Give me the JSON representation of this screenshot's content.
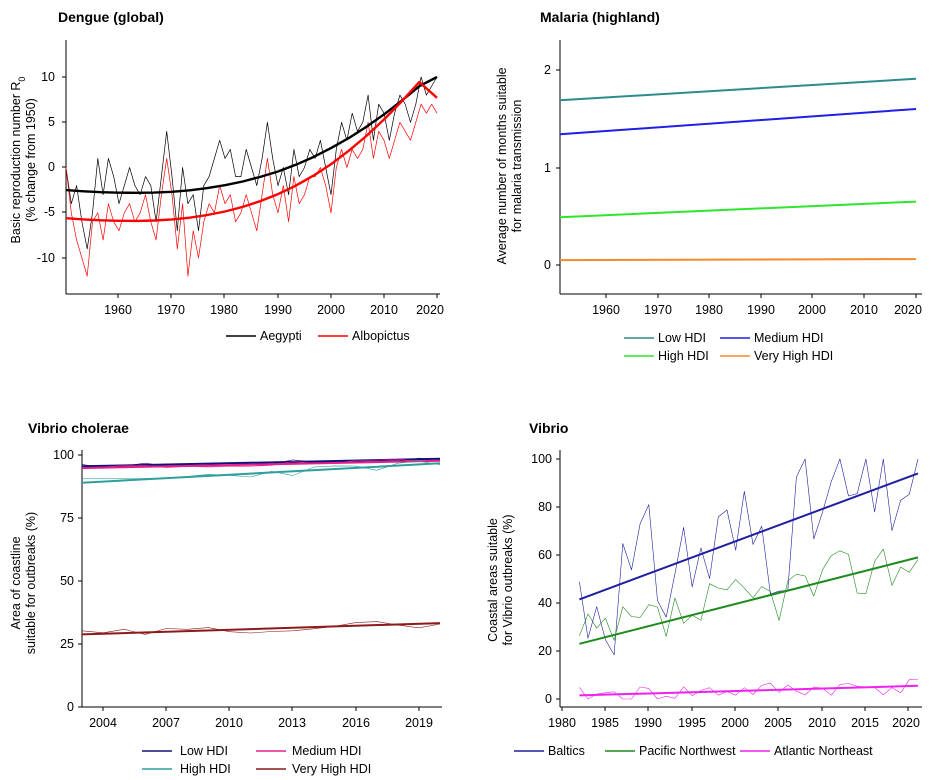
{
  "chart_data": [
    {
      "type": "line",
      "title": "Dengue (global)",
      "ylabel": "Basic reproduction number R",
      "ylabel_subscript": "0",
      "ylabel_line2": "(% change from 1950)",
      "xlabel": "",
      "xlim": [
        1951,
        2021
      ],
      "ylim": [
        -13,
        13
      ],
      "xticks": [
        "1960",
        "1970",
        "1980",
        "1990",
        "2000",
        "2010",
        "2020"
      ],
      "yticks": [
        "10",
        "5",
        "0",
        "-5",
        "-10"
      ],
      "grid": false,
      "legend": "bottom",
      "x": [
        1951,
        1952,
        1953,
        1954,
        1955,
        1956,
        1957,
        1958,
        1959,
        1960,
        1961,
        1962,
        1963,
        1964,
        1965,
        1966,
        1967,
        1968,
        1969,
        1970,
        1971,
        1972,
        1973,
        1974,
        1975,
        1976,
        1977,
        1978,
        1979,
        1980,
        1981,
        1982,
        1983,
        1984,
        1985,
        1986,
        1987,
        1988,
        1989,
        1990,
        1991,
        1992,
        1993,
        1994,
        1995,
        1996,
        1997,
        1998,
        1999,
        2000,
        2001,
        2002,
        2003,
        2004,
        2005,
        2006,
        2007,
        2008,
        2009,
        2010,
        2011,
        2012,
        2013,
        2014,
        2015,
        2016,
        2017,
        2018,
        2019,
        2020,
        2021
      ],
      "series": [
        {
          "name": "Aegypti",
          "color": "#000000",
          "values": [
            0,
            -4,
            -2,
            -6,
            -9,
            -5,
            1,
            -3,
            1,
            -1,
            -4,
            -2,
            0,
            -2,
            -3,
            -1,
            -2,
            -6,
            -1,
            4,
            -1,
            -7,
            0,
            -4,
            -3,
            -7,
            -2,
            -1,
            1,
            3,
            1,
            2,
            -1,
            -1,
            2,
            0,
            -2,
            1,
            5,
            1,
            -2,
            0,
            -3,
            2,
            -1,
            0,
            2,
            1,
            3,
            0,
            -3,
            2,
            5,
            3,
            6,
            4,
            5,
            8,
            3,
            7,
            6,
            3,
            6,
            8,
            7,
            5,
            7,
            10,
            8,
            9,
            10
          ]
        },
        {
          "name": "Albopictus",
          "color": "#ff0000",
          "values": [
            0,
            -5,
            -8,
            -10,
            -12,
            -6,
            -5,
            -8,
            -4,
            -6,
            -7,
            -5,
            -4,
            -6,
            -5,
            -3,
            -6,
            -8,
            -3,
            1,
            -3,
            -9,
            -4,
            -12,
            -7,
            -10,
            -6,
            -4,
            -5,
            -2,
            -4,
            -3,
            -6,
            -5,
            -3,
            -5,
            -7,
            -3,
            1,
            -3,
            -5,
            -2,
            -6,
            -1,
            -4,
            -3,
            -1,
            -1,
            0,
            -2,
            -5,
            0,
            2,
            0,
            2,
            1,
            2,
            5,
            1,
            4,
            3,
            1,
            3,
            5,
            4,
            3,
            5,
            7,
            6,
            7,
            6
          ]
        }
      ],
      "trends": [
        {
          "series": "Aegypti",
          "color": "#000000",
          "values": [
            -2.5,
            -2.63,
            -2.73,
            -2.79,
            -2.8,
            -2.77,
            -2.68,
            -2.52,
            -2.28,
            -1.96,
            -1.55,
            -1.04,
            -0.44,
            0.3,
            1.15,
            2.14,
            3.25,
            4.49,
            5.87,
            7.38,
            8.98,
            10.0
          ]
        },
        {
          "series": "Albopictus",
          "color": "#ff0000",
          "values": [
            -5.6,
            -5.73,
            -5.83,
            -5.89,
            -5.9,
            -5.86,
            -5.74,
            -5.55,
            -5.25,
            -4.86,
            -4.35,
            -3.71,
            -2.94,
            -2.01,
            -0.91,
            0.37,
            1.84,
            3.48,
            5.3,
            7.3,
            9.45,
            7.7
          ]
        }
      ]
    },
    {
      "type": "line",
      "title": "Malaria (highland)",
      "ylabel": "Average number of months suitable",
      "ylabel_line2": "for malaria transmission",
      "xlabel": "",
      "xlim": [
        1951,
        2021
      ],
      "ylim": [
        -0.3,
        2.3
      ],
      "xticks": [
        "1960",
        "1970",
        "1980",
        "1990",
        "2000",
        "2010",
        "2020"
      ],
      "yticks": [
        "2",
        "1",
        "0"
      ],
      "grid": false,
      "legend": "bottom",
      "series": [
        {
          "name": "Low HDI",
          "color": "#2e8b8b",
          "start": 1.69,
          "end": 1.91,
          "noise": 0.22,
          "seed": 3
        },
        {
          "name": "Medium HDI",
          "color": "#1f1fe6",
          "start": 1.34,
          "end": 1.6,
          "noise": 0.13,
          "seed": 7
        },
        {
          "name": "High HDI",
          "color": "#2ee62e",
          "start": 0.49,
          "end": 0.65,
          "noise": 0.06,
          "seed": 11
        },
        {
          "name": "Very High HDI",
          "color": "#f08c2e",
          "start": 0.05,
          "end": 0.06,
          "noise": 0.01,
          "seed": 13
        }
      ]
    },
    {
      "type": "line",
      "title": "Vibrio cholerae",
      "ylabel": "Area of coastline",
      "ylabel_line2": "suitable for outbreaks (%)",
      "xlabel": "",
      "xlim": [
        2003,
        2020
      ],
      "ylim": [
        0,
        100
      ],
      "xticks": [
        "2004",
        "2007",
        "2010",
        "2013",
        "2016",
        "2019"
      ],
      "yticks": [
        "100",
        "75",
        "50",
        "25",
        "0"
      ],
      "grid": false,
      "legend": "bottom",
      "series": [
        {
          "name": "Low HDI",
          "color": "#12127a",
          "start": 95.5,
          "end": 98.5,
          "noise": 0.9,
          "seed": 17
        },
        {
          "name": "Medium HDI",
          "color": "#e6208a",
          "start": 94.8,
          "end": 97.7,
          "noise": 1.0,
          "seed": 19
        },
        {
          "name": "High HDI",
          "color": "#2e9e9e",
          "start": 89.0,
          "end": 96.7,
          "noise": 1.8,
          "seed": 23
        },
        {
          "name": "Very High HDI",
          "color": "#8b1a1a",
          "start": 28.8,
          "end": 33.3,
          "noise": 1.6,
          "seed": 29
        }
      ]
    },
    {
      "type": "line",
      "title": "Vibrio",
      "ylabel": "Coastal areas suitable",
      "ylabel_line2": "for Vibrio outbreaks (%)",
      "xlabel": "",
      "xlim": [
        1980,
        2021
      ],
      "ylim": [
        -5,
        100
      ],
      "xticks": [
        "1980",
        "1985",
        "1990",
        "1995",
        "2000",
        "2005",
        "2010",
        "2015",
        "2020"
      ],
      "yticks": [
        "100",
        "80",
        "60",
        "40",
        "20",
        "0"
      ],
      "grid": false,
      "legend": "bottom",
      "series": [
        {
          "name": "Baltics",
          "color": "#1f1fa0",
          "start": 41.5,
          "end": 94.0,
          "noise": 30,
          "seed": 31,
          "from": 1982
        },
        {
          "name": "Pacific Northwest",
          "color": "#1f8b1f",
          "start": 23.0,
          "end": 59.0,
          "noise": 12,
          "seed": 37,
          "from": 1982
        },
        {
          "name": "Atlantic Northeast",
          "color": "#ee22ee",
          "start": 1.5,
          "end": 5.5,
          "noise": 3.5,
          "seed": 41,
          "from": 1982
        }
      ]
    }
  ]
}
